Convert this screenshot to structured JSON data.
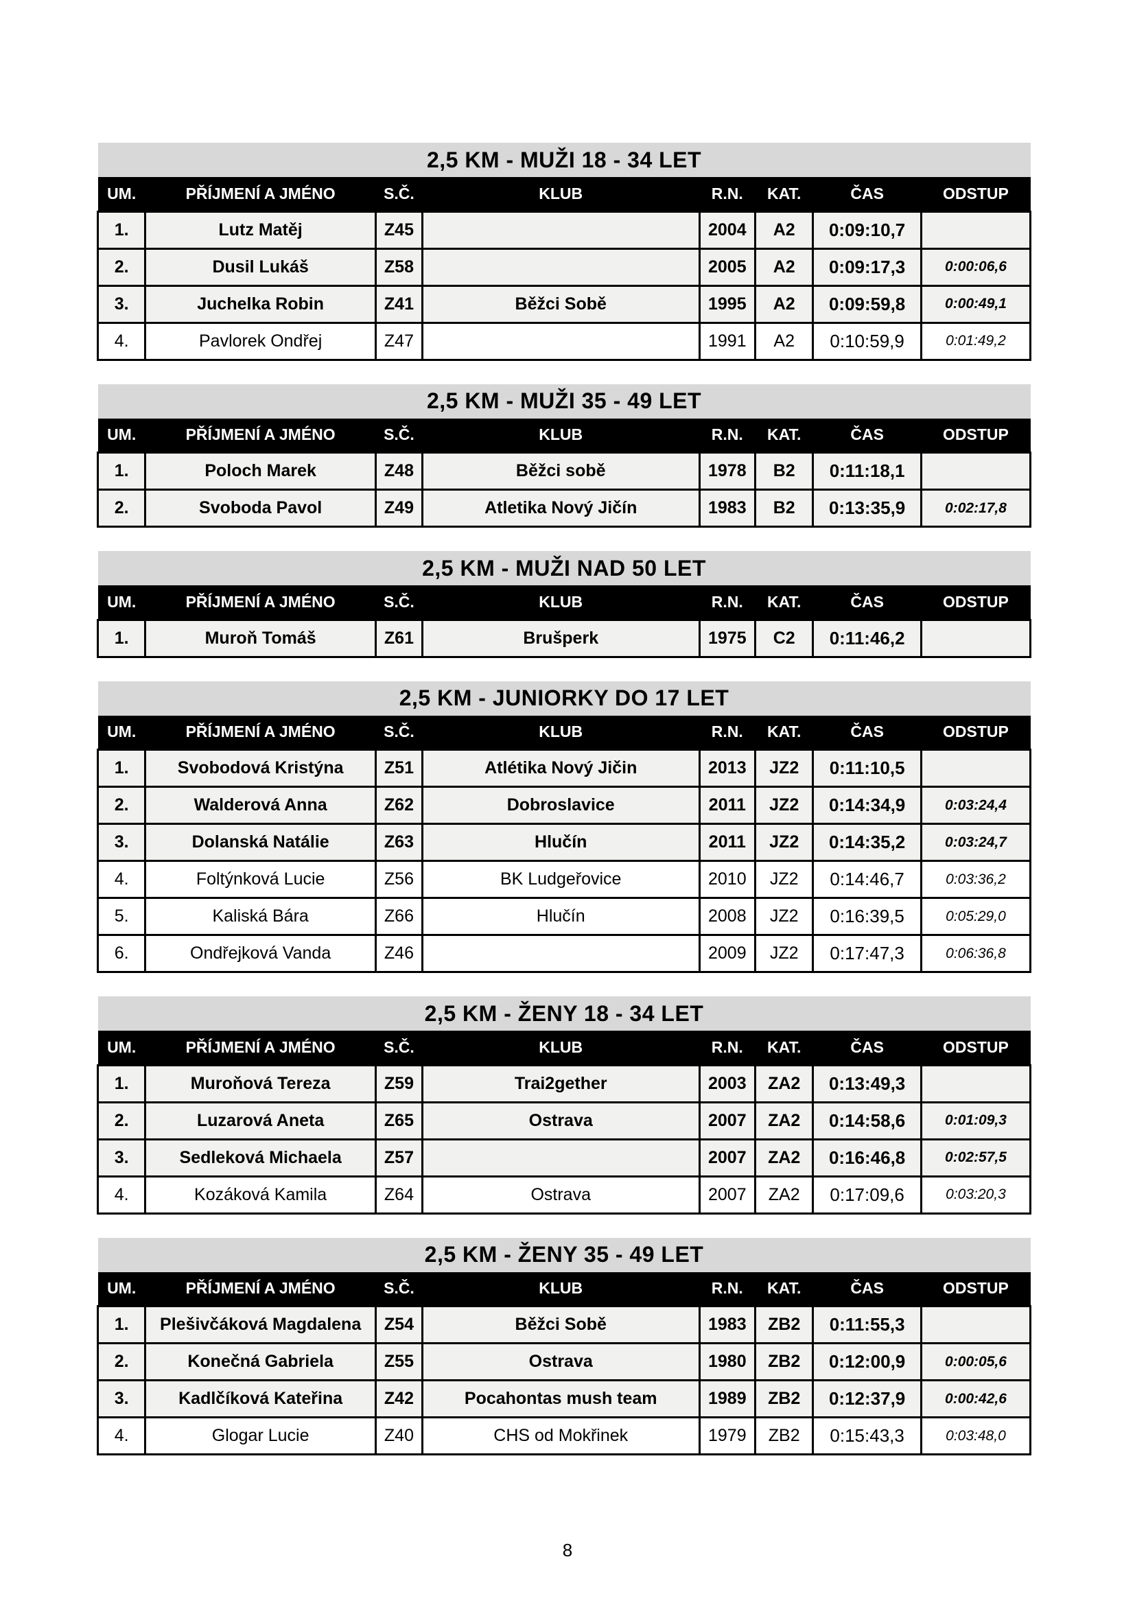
{
  "page": {
    "number": "8"
  },
  "columns": [
    "UM.",
    "PŘÍJMENÍ A JMÉNO",
    "S.Č.",
    "KLUB",
    "R.N.",
    "KAT.",
    "ČAS",
    "ODSTUP"
  ],
  "colors": {
    "title_bar_bg": "#d8d8d8",
    "header_bg": "#000000",
    "header_text": "#ffffff",
    "row_highlight_bg": "#f1f1ef",
    "row_bg": "#ffffff",
    "border": "#000000"
  },
  "tables": [
    {
      "title": "2,5 KM - MUŽI 18 - 34 LET",
      "rows": [
        {
          "um": "1.",
          "name": "Lutz Matěj",
          "sc": "Z45",
          "klub": "",
          "rn": "2004",
          "kat": "A2",
          "cas": "0:09:10,7",
          "odstup": ""
        },
        {
          "um": "2.",
          "name": "Dusil Lukáš",
          "sc": "Z58",
          "klub": "",
          "rn": "2005",
          "kat": "A2",
          "cas": "0:09:17,3",
          "odstup": "0:00:06,6"
        },
        {
          "um": "3.",
          "name": "Juchelka Robin",
          "sc": "Z41",
          "klub": "Běžci Sobě",
          "rn": "1995",
          "kat": "A2",
          "cas": "0:09:59,8",
          "odstup": "0:00:49,1"
        },
        {
          "um": "4.",
          "name": "Pavlorek Ondřej",
          "sc": "Z47",
          "klub": "",
          "rn": "1991",
          "kat": "A2",
          "cas": "0:10:59,9",
          "odstup": "0:01:49,2"
        }
      ]
    },
    {
      "title": "2,5 KM - MUŽI 35 - 49 LET",
      "rows": [
        {
          "um": "1.",
          "name": "Poloch Marek",
          "sc": "Z48",
          "klub": "Běžci sobě",
          "rn": "1978",
          "kat": "B2",
          "cas": "0:11:18,1",
          "odstup": ""
        },
        {
          "um": "2.",
          "name": "Svoboda Pavol",
          "sc": "Z49",
          "klub": "Atletika Nový Jičín",
          "rn": "1983",
          "kat": "B2",
          "cas": "0:13:35,9",
          "odstup": "0:02:17,8"
        }
      ]
    },
    {
      "title": "2,5 KM - MUŽI NAD 50 LET",
      "rows": [
        {
          "um": "1.",
          "name": "Muroň Tomáš",
          "sc": "Z61",
          "klub": "Brušperk",
          "rn": "1975",
          "kat": "C2",
          "cas": "0:11:46,2",
          "odstup": ""
        }
      ]
    },
    {
      "title": "2,5 KM - JUNIORKY DO 17 LET",
      "rows": [
        {
          "um": "1.",
          "name": "Svobodová Kristýna",
          "sc": "Z51",
          "klub": "Atlétika Nový Jičin",
          "rn": "2013",
          "kat": "JZ2",
          "cas": "0:11:10,5",
          "odstup": ""
        },
        {
          "um": "2.",
          "name": "Walderová Anna",
          "sc": "Z62",
          "klub": "Dobroslavice",
          "rn": "2011",
          "kat": "JZ2",
          "cas": "0:14:34,9",
          "odstup": "0:03:24,4"
        },
        {
          "um": "3.",
          "name": "Dolanská Natálie",
          "sc": "Z63",
          "klub": "Hlučín",
          "rn": "2011",
          "kat": "JZ2",
          "cas": "0:14:35,2",
          "odstup": "0:03:24,7"
        },
        {
          "um": "4.",
          "name": "Foltýnková Lucie",
          "sc": "Z56",
          "klub": "BK Ludgeřovice",
          "rn": "2010",
          "kat": "JZ2",
          "cas": "0:14:46,7",
          "odstup": "0:03:36,2"
        },
        {
          "um": "5.",
          "name": "Kaliská Bára",
          "sc": "Z66",
          "klub": "Hlučín",
          "rn": "2008",
          "kat": "JZ2",
          "cas": "0:16:39,5",
          "odstup": "0:05:29,0"
        },
        {
          "um": "6.",
          "name": "Ondřejková Vanda",
          "sc": "Z46",
          "klub": "",
          "rn": "2009",
          "kat": "JZ2",
          "cas": "0:17:47,3",
          "odstup": "0:06:36,8"
        }
      ]
    },
    {
      "title": "2,5 KM - ŽENY 18 - 34 LET",
      "rows": [
        {
          "um": "1.",
          "name": "Muroňová Tereza",
          "sc": "Z59",
          "klub": "Trai2gether",
          "rn": "2003",
          "kat": "ZA2",
          "cas": "0:13:49,3",
          "odstup": ""
        },
        {
          "um": "2.",
          "name": "Luzarová Aneta",
          "sc": "Z65",
          "klub": "Ostrava",
          "rn": "2007",
          "kat": "ZA2",
          "cas": "0:14:58,6",
          "odstup": "0:01:09,3"
        },
        {
          "um": "3.",
          "name": "Sedleková Michaela",
          "sc": "Z57",
          "klub": "",
          "rn": "2007",
          "kat": "ZA2",
          "cas": "0:16:46,8",
          "odstup": "0:02:57,5"
        },
        {
          "um": "4.",
          "name": "Kozáková Kamila",
          "sc": "Z64",
          "klub": "Ostrava",
          "rn": "2007",
          "kat": "ZA2",
          "cas": "0:17:09,6",
          "odstup": "0:03:20,3"
        }
      ]
    },
    {
      "title": "2,5 KM - ŽENY 35 - 49 LET",
      "rows": [
        {
          "um": "1.",
          "name": "Plešivčáková Magdalena",
          "sc": "Z54",
          "klub": "Běžci Sobě",
          "rn": "1983",
          "kat": "ZB2",
          "cas": "0:11:55,3",
          "odstup": ""
        },
        {
          "um": "2.",
          "name": "Konečná Gabriela",
          "sc": "Z55",
          "klub": "Ostrava",
          "rn": "1980",
          "kat": "ZB2",
          "cas": "0:12:00,9",
          "odstup": "0:00:05,6"
        },
        {
          "um": "3.",
          "name": "Kadlčíková Kateřina",
          "sc": "Z42",
          "klub": "Pocahontas mush team",
          "rn": "1989",
          "kat": "ZB2",
          "cas": "0:12:37,9",
          "odstup": "0:00:42,6"
        },
        {
          "um": "4.",
          "name": "Glogar Lucie",
          "sc": "Z40",
          "klub": "CHS od Mokřinek",
          "rn": "1979",
          "kat": "ZB2",
          "cas": "0:15:43,3",
          "odstup": "0:03:48,0"
        }
      ]
    }
  ]
}
